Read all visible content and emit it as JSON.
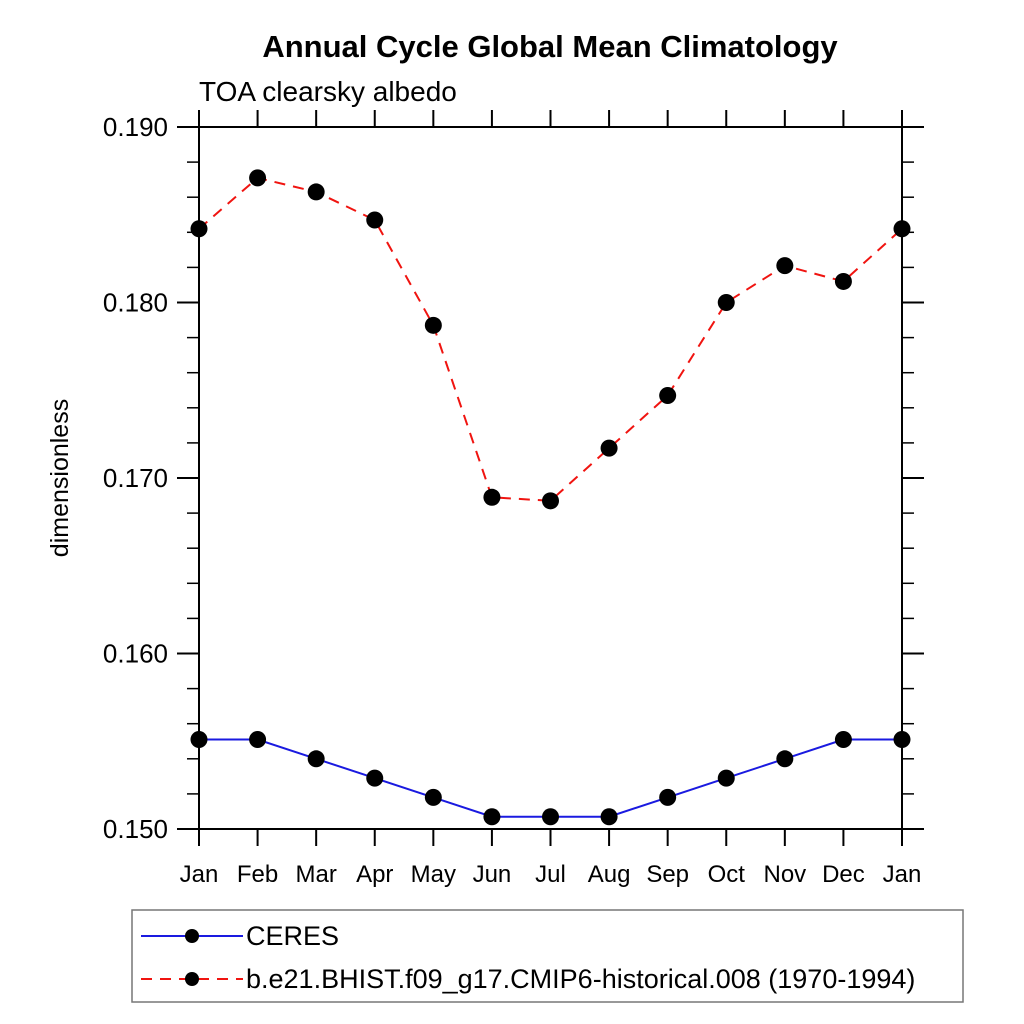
{
  "chart_data": {
    "type": "line",
    "title": "Annual Cycle Global Mean Climatology",
    "subtitle": "TOA clearsky albedo",
    "xlabel": "",
    "ylabel": "dimensionless",
    "categories": [
      "Jan",
      "Feb",
      "Mar",
      "Apr",
      "May",
      "Jun",
      "Jul",
      "Aug",
      "Sep",
      "Oct",
      "Nov",
      "Dec",
      "Jan"
    ],
    "ylim": [
      0.15,
      0.19
    ],
    "y_major_ticks": [
      0.15,
      0.16,
      0.17,
      0.18,
      0.19
    ],
    "y_tick_labels": [
      "0.150",
      "0.160",
      "0.170",
      "0.180",
      "0.190"
    ],
    "y_minor_step": 0.002,
    "grid": false,
    "legend_position": "bottom-left",
    "axis_color": "#000000",
    "marker": {
      "shape": "circle",
      "color": "#000000"
    },
    "series": [
      {
        "name": "CERES",
        "color": "#1a1ae0",
        "style": "solid",
        "values": [
          0.1551,
          0.1551,
          0.154,
          0.1529,
          0.1518,
          0.1507,
          0.1507,
          0.1507,
          0.1518,
          0.1529,
          0.154,
          0.1551,
          0.1551
        ]
      },
      {
        "name": "b.e21.BHIST.f09_g17.CMIP6-historical.008 (1970-1994)",
        "color": "#f01410",
        "style": "dashed",
        "values": [
          0.1842,
          0.1871,
          0.1863,
          0.1847,
          0.1787,
          0.1689,
          0.1687,
          0.1717,
          0.1747,
          0.18,
          0.1821,
          0.1812,
          0.1842
        ]
      }
    ]
  }
}
